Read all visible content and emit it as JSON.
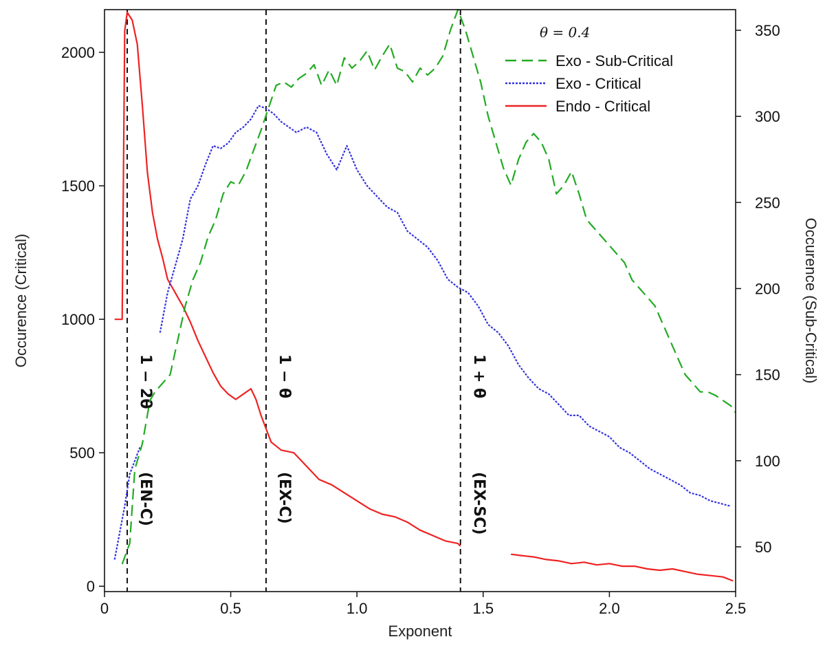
{
  "chart_data": {
    "type": "line",
    "title": "",
    "xlabel": "Exponent",
    "ylabel_left": "Occurence (Critical)",
    "ylabel_right": "Occurence (Sub-Critical)",
    "xlim": [
      0,
      2.5
    ],
    "ylim_left": [
      -20,
      2160
    ],
    "ylim_right": [
      24,
      362
    ],
    "xticks": [
      0,
      0.5,
      1.0,
      1.5,
      2.0,
      2.5
    ],
    "xtick_labels": [
      "0",
      "0.5",
      "1.0",
      "1.5",
      "2.0",
      "2.5"
    ],
    "yticks_left": [
      0,
      500,
      1000,
      1500,
      2000
    ],
    "ytick_labels_left": [
      "0",
      "500",
      "1000",
      "1500",
      "2000"
    ],
    "yticks_right": [
      50,
      100,
      150,
      200,
      250,
      300,
      350
    ],
    "ytick_labels_right": [
      "50",
      "100",
      "150",
      "200",
      "250",
      "300",
      "350"
    ],
    "grid": false,
    "legend": {
      "placement": "top-right",
      "header": "θ = 0.4",
      "entries": [
        {
          "label": "Exo - Sub-Critical",
          "color": "#22aa22",
          "style": "dashed"
        },
        {
          "label": "Exo - Critical",
          "color": "#3333dd",
          "style": "dash-dot"
        },
        {
          "label": "Endo - Critical",
          "color": "#ee2222",
          "style": "solid"
        }
      ]
    },
    "vlines": [
      {
        "x": 0.09,
        "label": "1 − 2θ",
        "sublabel": "(EN-C)"
      },
      {
        "x": 0.64,
        "label": "1 − θ",
        "sublabel": "(EX-C)"
      },
      {
        "x": 1.41,
        "label": "1 + θ",
        "sublabel": "(EX-SC)"
      }
    ],
    "series": [
      {
        "name": "Endo - Critical",
        "axis": "left",
        "color": "#ee2222",
        "style": "solid",
        "x": [
          0.04,
          0.07,
          0.08,
          0.09,
          0.11,
          0.13,
          0.15,
          0.17,
          0.19,
          0.21,
          0.23,
          0.25,
          0.28,
          0.31,
          0.34,
          0.37,
          0.4,
          0.43,
          0.46,
          0.49,
          0.52,
          0.55,
          0.58,
          0.6,
          0.62,
          0.64,
          0.66,
          0.7,
          0.75,
          0.8,
          0.85,
          0.9,
          0.95,
          1.0,
          1.05,
          1.1,
          1.15,
          1.2,
          1.25,
          1.3,
          1.35,
          1.4,
          1.41,
          null,
          1.61,
          1.65,
          1.7,
          1.75,
          1.8,
          1.85,
          1.9,
          1.95,
          2.0,
          2.05,
          2.1,
          2.15,
          2.2,
          2.25,
          2.3,
          2.35,
          2.4,
          2.45,
          2.49
        ],
        "y": [
          1000,
          1000,
          2080,
          2150,
          2120,
          2030,
          1800,
          1550,
          1400,
          1300,
          1230,
          1150,
          1100,
          1050,
          990,
          920,
          860,
          800,
          750,
          720,
          700,
          720,
          740,
          700,
          640,
          590,
          540,
          510,
          500,
          450,
          400,
          380,
          350,
          320,
          290,
          270,
          260,
          240,
          210,
          190,
          170,
          160,
          150,
          null,
          120,
          115,
          110,
          100,
          95,
          85,
          90,
          80,
          85,
          75,
          75,
          65,
          60,
          65,
          55,
          45,
          40,
          35,
          20
        ]
      },
      {
        "name": "Exo - Critical",
        "axis": "left",
        "color": "#3333dd",
        "style": "dash-dot",
        "x": [
          0.04,
          0.08,
          0.1,
          0.12,
          0.14,
          null,
          0.22,
          0.25,
          0.28,
          0.31,
          0.34,
          0.37,
          0.4,
          0.43,
          0.46,
          0.49,
          0.52,
          0.55,
          0.58,
          0.61,
          0.64,
          0.67,
          0.7,
          0.73,
          0.76,
          0.8,
          0.84,
          0.88,
          0.92,
          0.96,
          1.0,
          1.04,
          1.08,
          1.12,
          1.16,
          1.2,
          1.24,
          1.28,
          1.32,
          1.36,
          1.4,
          1.44,
          1.48,
          1.52,
          1.56,
          1.6,
          1.64,
          1.68,
          1.72,
          1.76,
          1.8,
          1.84,
          1.88,
          1.92,
          1.96,
          2.0,
          2.04,
          2.08,
          2.12,
          2.16,
          2.2,
          2.24,
          2.28,
          2.32,
          2.36,
          2.4,
          2.44,
          2.48
        ],
        "y": [
          100,
          300,
          420,
          470,
          520,
          null,
          950,
          1100,
          1200,
          1300,
          1450,
          1500,
          1580,
          1650,
          1640,
          1660,
          1700,
          1720,
          1750,
          1800,
          1790,
          1770,
          1740,
          1720,
          1700,
          1720,
          1700,
          1620,
          1560,
          1650,
          1560,
          1500,
          1460,
          1420,
          1400,
          1330,
          1300,
          1270,
          1220,
          1150,
          1120,
          1100,
          1050,
          980,
          950,
          900,
          830,
          780,
          740,
          720,
          680,
          640,
          640,
          600,
          580,
          560,
          520,
          500,
          470,
          440,
          420,
          400,
          380,
          350,
          340,
          320,
          310,
          300
        ]
      },
      {
        "name": "Exo - Sub-Critical",
        "axis": "right",
        "color": "#22aa22",
        "style": "dashed",
        "x": [
          0.07,
          0.09,
          0.1,
          0.12,
          0.15,
          0.18,
          0.2,
          0.23,
          0.26,
          0.29,
          0.32,
          0.35,
          0.38,
          0.41,
          0.44,
          0.47,
          0.5,
          0.53,
          0.56,
          0.59,
          0.62,
          0.65,
          0.68,
          0.71,
          0.74,
          0.77,
          0.8,
          0.83,
          0.86,
          0.89,
          0.92,
          0.95,
          0.98,
          1.01,
          1.04,
          1.07,
          1.1,
          1.13,
          1.16,
          1.19,
          1.22,
          1.25,
          1.28,
          1.31,
          1.34,
          1.37,
          1.4,
          1.43,
          1.46,
          1.49,
          1.52,
          1.55,
          1.58,
          1.61,
          1.64,
          1.67,
          1.7,
          1.73,
          1.76,
          1.79,
          1.82,
          1.85,
          1.88,
          1.91,
          1.94,
          1.97,
          2.0,
          2.03,
          2.06,
          2.09,
          2.12,
          2.15,
          2.18,
          2.21,
          2.24,
          2.27,
          2.3,
          2.33,
          2.36,
          2.39,
          2.42,
          2.45,
          2.48,
          2.5
        ],
        "y": [
          40,
          48,
          52,
          95,
          110,
          135,
          140,
          145,
          150,
          170,
          190,
          205,
          215,
          230,
          240,
          255,
          262,
          260,
          268,
          280,
          292,
          305,
          318,
          320,
          317,
          322,
          325,
          330,
          318,
          327,
          318,
          334,
          328,
          332,
          338,
          327,
          335,
          342,
          328,
          326,
          320,
          328,
          324,
          328,
          335,
          350,
          362,
          350,
          335,
          320,
          300,
          285,
          270,
          260,
          275,
          285,
          290,
          285,
          275,
          255,
          260,
          268,
          255,
          240,
          235,
          230,
          225,
          220,
          215,
          205,
          200,
          195,
          190,
          180,
          170,
          160,
          150,
          145,
          140,
          140,
          138,
          135,
          132,
          128
        ]
      }
    ]
  }
}
